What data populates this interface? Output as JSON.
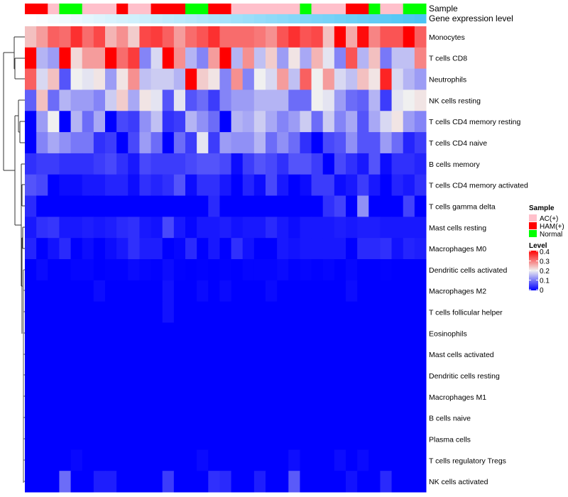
{
  "chart_data": {
    "type": "heatmap",
    "annotations": {
      "sample_label": "Sample",
      "gene_label": "Gene expression level",
      "sample_groups": [
        "HAM(+)",
        "HAM(+)",
        "AC(+)",
        "Normal",
        "Normal",
        "AC(+)",
        "AC(+)",
        "AC(+)",
        "HAM(+)",
        "AC(+)",
        "AC(+)",
        "HAM(+)",
        "HAM(+)",
        "HAM(+)",
        "Normal",
        "Normal",
        "HAM(+)",
        "HAM(+)",
        "AC(+)",
        "AC(+)",
        "AC(+)",
        "AC(+)",
        "AC(+)",
        "AC(+)",
        "Normal",
        "AC(+)",
        "AC(+)",
        "AC(+)",
        "HAM(+)",
        "HAM(+)",
        "Normal",
        "AC(+)",
        "AC(+)",
        "Normal",
        "Normal"
      ],
      "gene_expression_rank": [
        0,
        0.03,
        0.06,
        0.09,
        0.12,
        0.15,
        0.18,
        0.21,
        0.24,
        0.26,
        0.29,
        0.32,
        0.35,
        0.38,
        0.41,
        0.44,
        0.47,
        0.5,
        0.53,
        0.56,
        0.59,
        0.62,
        0.65,
        0.68,
        0.71,
        0.74,
        0.76,
        0.79,
        0.82,
        0.85,
        0.88,
        0.91,
        0.94,
        0.97,
        1
      ]
    },
    "rows": [
      "Monocytes",
      "T cells CD8",
      "Neutrophils",
      "NK cells resting",
      "T cells CD4 memory resting",
      "T cells CD4 naive",
      "B cells memory",
      "T cells CD4 memory activated",
      "T cells gamma delta",
      "Mast cells resting",
      "Macrophages M0",
      "Dendritic cells activated",
      "Macrophages M2",
      "T cells follicular helper",
      "Eosinophils",
      "Mast cells activated",
      "Dendritic cells resting",
      "Macrophages M1",
      "B cells naive",
      "Plasma cells",
      "T cells regulatory  Tregs",
      "NK cells activated"
    ],
    "values": [
      [
        0.24,
        0.27,
        0.32,
        0.31,
        0.36,
        0.31,
        0.34,
        0.25,
        0.28,
        0.23,
        0.34,
        0.35,
        0.32,
        0.27,
        0.31,
        0.33,
        0.36,
        0.31,
        0.31,
        0.31,
        0.3,
        0.28,
        0.33,
        0.36,
        0.33,
        0.34,
        0.24,
        0.4,
        0.26,
        0.39,
        0.29,
        0.33,
        0.33,
        0.4,
        0.32
      ],
      [
        0.4,
        0.15,
        0.13,
        0.4,
        0.22,
        0.27,
        0.27,
        0.4,
        0.31,
        0.35,
        0.11,
        0.18,
        0.4,
        0.28,
        0.15,
        0.11,
        0.27,
        0.4,
        0.15,
        0.28,
        0.16,
        0.23,
        0.13,
        0.21,
        0.14,
        0.25,
        0.19,
        0.11,
        0.33,
        0.15,
        0.24,
        0.1,
        0.16,
        0.16,
        0.29
      ],
      [
        0.32,
        0.18,
        0.24,
        0.07,
        0.2,
        0.19,
        0.21,
        0.13,
        0.21,
        0.28,
        0.16,
        0.17,
        0.17,
        0.15,
        0.4,
        0.23,
        0.21,
        0.11,
        0.28,
        0.11,
        0.2,
        0.18,
        0.27,
        0.16,
        0.32,
        0.2,
        0.27,
        0.18,
        0.16,
        0.24,
        0.21,
        0.37,
        0.18,
        0.15,
        0.13
      ],
      [
        0.08,
        0.24,
        0.09,
        0.15,
        0.13,
        0.13,
        0.11,
        0.17,
        0.23,
        0.14,
        0.21,
        0.19,
        0.07,
        0.19,
        0.07,
        0.09,
        0.05,
        0.11,
        0.13,
        0.13,
        0.15,
        0.15,
        0.15,
        0.09,
        0.09,
        0.2,
        0.19,
        0.13,
        0.09,
        0.08,
        0.15,
        0.05,
        0.19,
        0.2,
        0.21
      ],
      [
        0,
        0.13,
        0.2,
        0,
        0.15,
        0.09,
        0.14,
        0,
        0.06,
        0.05,
        0.12,
        0.16,
        0.04,
        0.05,
        0.15,
        0.12,
        0.09,
        0,
        0.15,
        0.14,
        0.17,
        0.14,
        0.11,
        0.13,
        0.17,
        0.09,
        0.17,
        0.11,
        0.14,
        0.07,
        0.14,
        0.18,
        0.21,
        0.13,
        0.11
      ],
      [
        0,
        0.11,
        0.14,
        0.12,
        0.1,
        0.1,
        0.04,
        0.05,
        0,
        0.06,
        0.13,
        0.09,
        0,
        0.09,
        0.05,
        0.19,
        0.05,
        0.13,
        0.12,
        0.12,
        0.15,
        0.09,
        0.12,
        0.09,
        0.04,
        0,
        0.06,
        0.07,
        0.12,
        0.07,
        0.07,
        0.13,
        0.09,
        0.03,
        0.05
      ],
      [
        0.04,
        0.05,
        0.05,
        0.04,
        0.04,
        0.04,
        0.05,
        0.06,
        0.04,
        0.02,
        0.06,
        0.05,
        0.05,
        0.05,
        0.06,
        0.07,
        0.07,
        0.06,
        0.01,
        0.05,
        0.07,
        0.06,
        0.04,
        0.07,
        0.07,
        0.05,
        0,
        0.06,
        0.04,
        0.02,
        0.07,
        0.01,
        0.04,
        0.04,
        0.03
      ],
      [
        0.07,
        0.06,
        0,
        0.01,
        0.01,
        0.02,
        0.02,
        0.03,
        0.03,
        0.01,
        0.04,
        0.03,
        0.04,
        0.07,
        0.01,
        0.04,
        0.04,
        0.02,
        0,
        0.03,
        0.01,
        0.06,
        0.02,
        0,
        0.01,
        0.05,
        0.05,
        0.01,
        0.02,
        0.05,
        0.02,
        0,
        0.03,
        0.02,
        0.04
      ],
      [
        0.035,
        0,
        0,
        0,
        0,
        0,
        0,
        0,
        0,
        0,
        0,
        0,
        0,
        0,
        0,
        0,
        0.035,
        0,
        0,
        0,
        0,
        0,
        0,
        0,
        0,
        0,
        0.04,
        0.055,
        0,
        0.12,
        0,
        0,
        0,
        0.055,
        0
      ],
      [
        0.02,
        0.04,
        0.045,
        0.02,
        0.02,
        0.025,
        0.02,
        0.025,
        0.035,
        0.04,
        0.02,
        0.015,
        0.06,
        0.02,
        0.005,
        0.02,
        0.02,
        0.025,
        0.015,
        0.02,
        0.02,
        0.035,
        0.02,
        0.01,
        0.02,
        0.02,
        0.02,
        0.025,
        0.02,
        0.025,
        0.025,
        0.02,
        0.02,
        0.02,
        0.02
      ],
      [
        0.03,
        0,
        0.015,
        0.035,
        0,
        0.01,
        0,
        0.01,
        0.02,
        0.04,
        0.025,
        0.025,
        0,
        0.005,
        0.035,
        0,
        0.02,
        0,
        0.04,
        0.015,
        0,
        0,
        0.02,
        0.015,
        0.02,
        0.02,
        0.02,
        0.02,
        0,
        0.035,
        0.035,
        0.04,
        0.015,
        0.03,
        0.025
      ],
      [
        0,
        0.008,
        0,
        0,
        0.004,
        0.004,
        0,
        0.002,
        0.002,
        0.008,
        0.004,
        0.002,
        0.01,
        0.002,
        0,
        0.002,
        0,
        0.002,
        0,
        0.004,
        0.004,
        0.004,
        0.008,
        0.002,
        0.004,
        0.002,
        0.004,
        0,
        0.006,
        0,
        0,
        0.002,
        0,
        0,
        0
      ],
      [
        0,
        0,
        0,
        0,
        0,
        0,
        0.01,
        0,
        0,
        0,
        0,
        0,
        0.015,
        0,
        0,
        0.008,
        0,
        0.008,
        0,
        0,
        0,
        0.008,
        0,
        0,
        0,
        0,
        0,
        0,
        0.01,
        0,
        0,
        0,
        0,
        0,
        0
      ],
      [
        0,
        0,
        0,
        0,
        0,
        0,
        0,
        0,
        0,
        0,
        0,
        0,
        0.015,
        0,
        0,
        0,
        0,
        0,
        0,
        0,
        0,
        0,
        0,
        0,
        0,
        0,
        0,
        0,
        0,
        0,
        0,
        0,
        0,
        0,
        0
      ],
      [
        0,
        0,
        0,
        0,
        0,
        0,
        0,
        0,
        0,
        0,
        0,
        0,
        0,
        0,
        0,
        0,
        0,
        0,
        0,
        0,
        0,
        0,
        0,
        0,
        0,
        0,
        0,
        0,
        0,
        0,
        0,
        0,
        0,
        0,
        0
      ],
      [
        0,
        0,
        0,
        0,
        0,
        0,
        0,
        0,
        0,
        0,
        0,
        0,
        0,
        0,
        0,
        0,
        0,
        0,
        0,
        0,
        0,
        0,
        0,
        0,
        0,
        0,
        0,
        0,
        0,
        0,
        0,
        0,
        0,
        0,
        0
      ],
      [
        0,
        0,
        0,
        0,
        0,
        0,
        0,
        0,
        0,
        0,
        0,
        0,
        0,
        0,
        0,
        0,
        0,
        0,
        0,
        0,
        0,
        0,
        0,
        0,
        0,
        0,
        0,
        0,
        0,
        0,
        0,
        0,
        0,
        0,
        0
      ],
      [
        0,
        0,
        0,
        0,
        0,
        0,
        0,
        0,
        0,
        0,
        0,
        0,
        0,
        0,
        0,
        0,
        0,
        0,
        0,
        0,
        0,
        0,
        0,
        0,
        0,
        0,
        0,
        0,
        0,
        0,
        0,
        0,
        0,
        0,
        0
      ],
      [
        0,
        0,
        0,
        0,
        0,
        0,
        0,
        0,
        0,
        0,
        0,
        0,
        0,
        0,
        0,
        0,
        0,
        0,
        0,
        0,
        0,
        0,
        0,
        0,
        0,
        0,
        0,
        0,
        0,
        0,
        0,
        0,
        0,
        0,
        0
      ],
      [
        0,
        0,
        0,
        0,
        0,
        0,
        0,
        0,
        0,
        0,
        0,
        0,
        0,
        0,
        0,
        0,
        0,
        0,
        0,
        0,
        0,
        0,
        0,
        0,
        0,
        0,
        0,
        0,
        0,
        0,
        0,
        0,
        0,
        0,
        0
      ],
      [
        0,
        0,
        0,
        0,
        0.007,
        0,
        0,
        0,
        0,
        0,
        0,
        0,
        0,
        0,
        0,
        0.008,
        0,
        0,
        0,
        0,
        0,
        0,
        0,
        0.012,
        0,
        0,
        0,
        0.01,
        0,
        0.008,
        0,
        0,
        0,
        0,
        0
      ],
      [
        0,
        0,
        0,
        0.09,
        0,
        0,
        0.025,
        0.025,
        0,
        0,
        0,
        0,
        0.05,
        0,
        0,
        0,
        0.04,
        0.035,
        0,
        0,
        0.025,
        0,
        0,
        0.075,
        0,
        0,
        0,
        0,
        0.015,
        0,
        0,
        0.035,
        0,
        0,
        0
      ]
    ],
    "legend": {
      "sample_title": "Sample",
      "sample_items": [
        {
          "label": "AC(+)",
          "color": "#ffc0cb"
        },
        {
          "label": "HAM(+)",
          "color": "#ff0000"
        },
        {
          "label": "Normal",
          "color": "#00ff00"
        }
      ],
      "level_title": "Level",
      "level_ticks": [
        "0.4",
        "0.3",
        "0.2",
        "0.1",
        "0"
      ],
      "level_range": [
        0,
        0.4
      ],
      "colors": {
        "low": "#0000ff",
        "mid": "#f0f0f0",
        "high": "#ff0000",
        "gene_low": "#ffffff",
        "gene_high": "#4cc4f4"
      }
    },
    "placement": "legend right"
  }
}
